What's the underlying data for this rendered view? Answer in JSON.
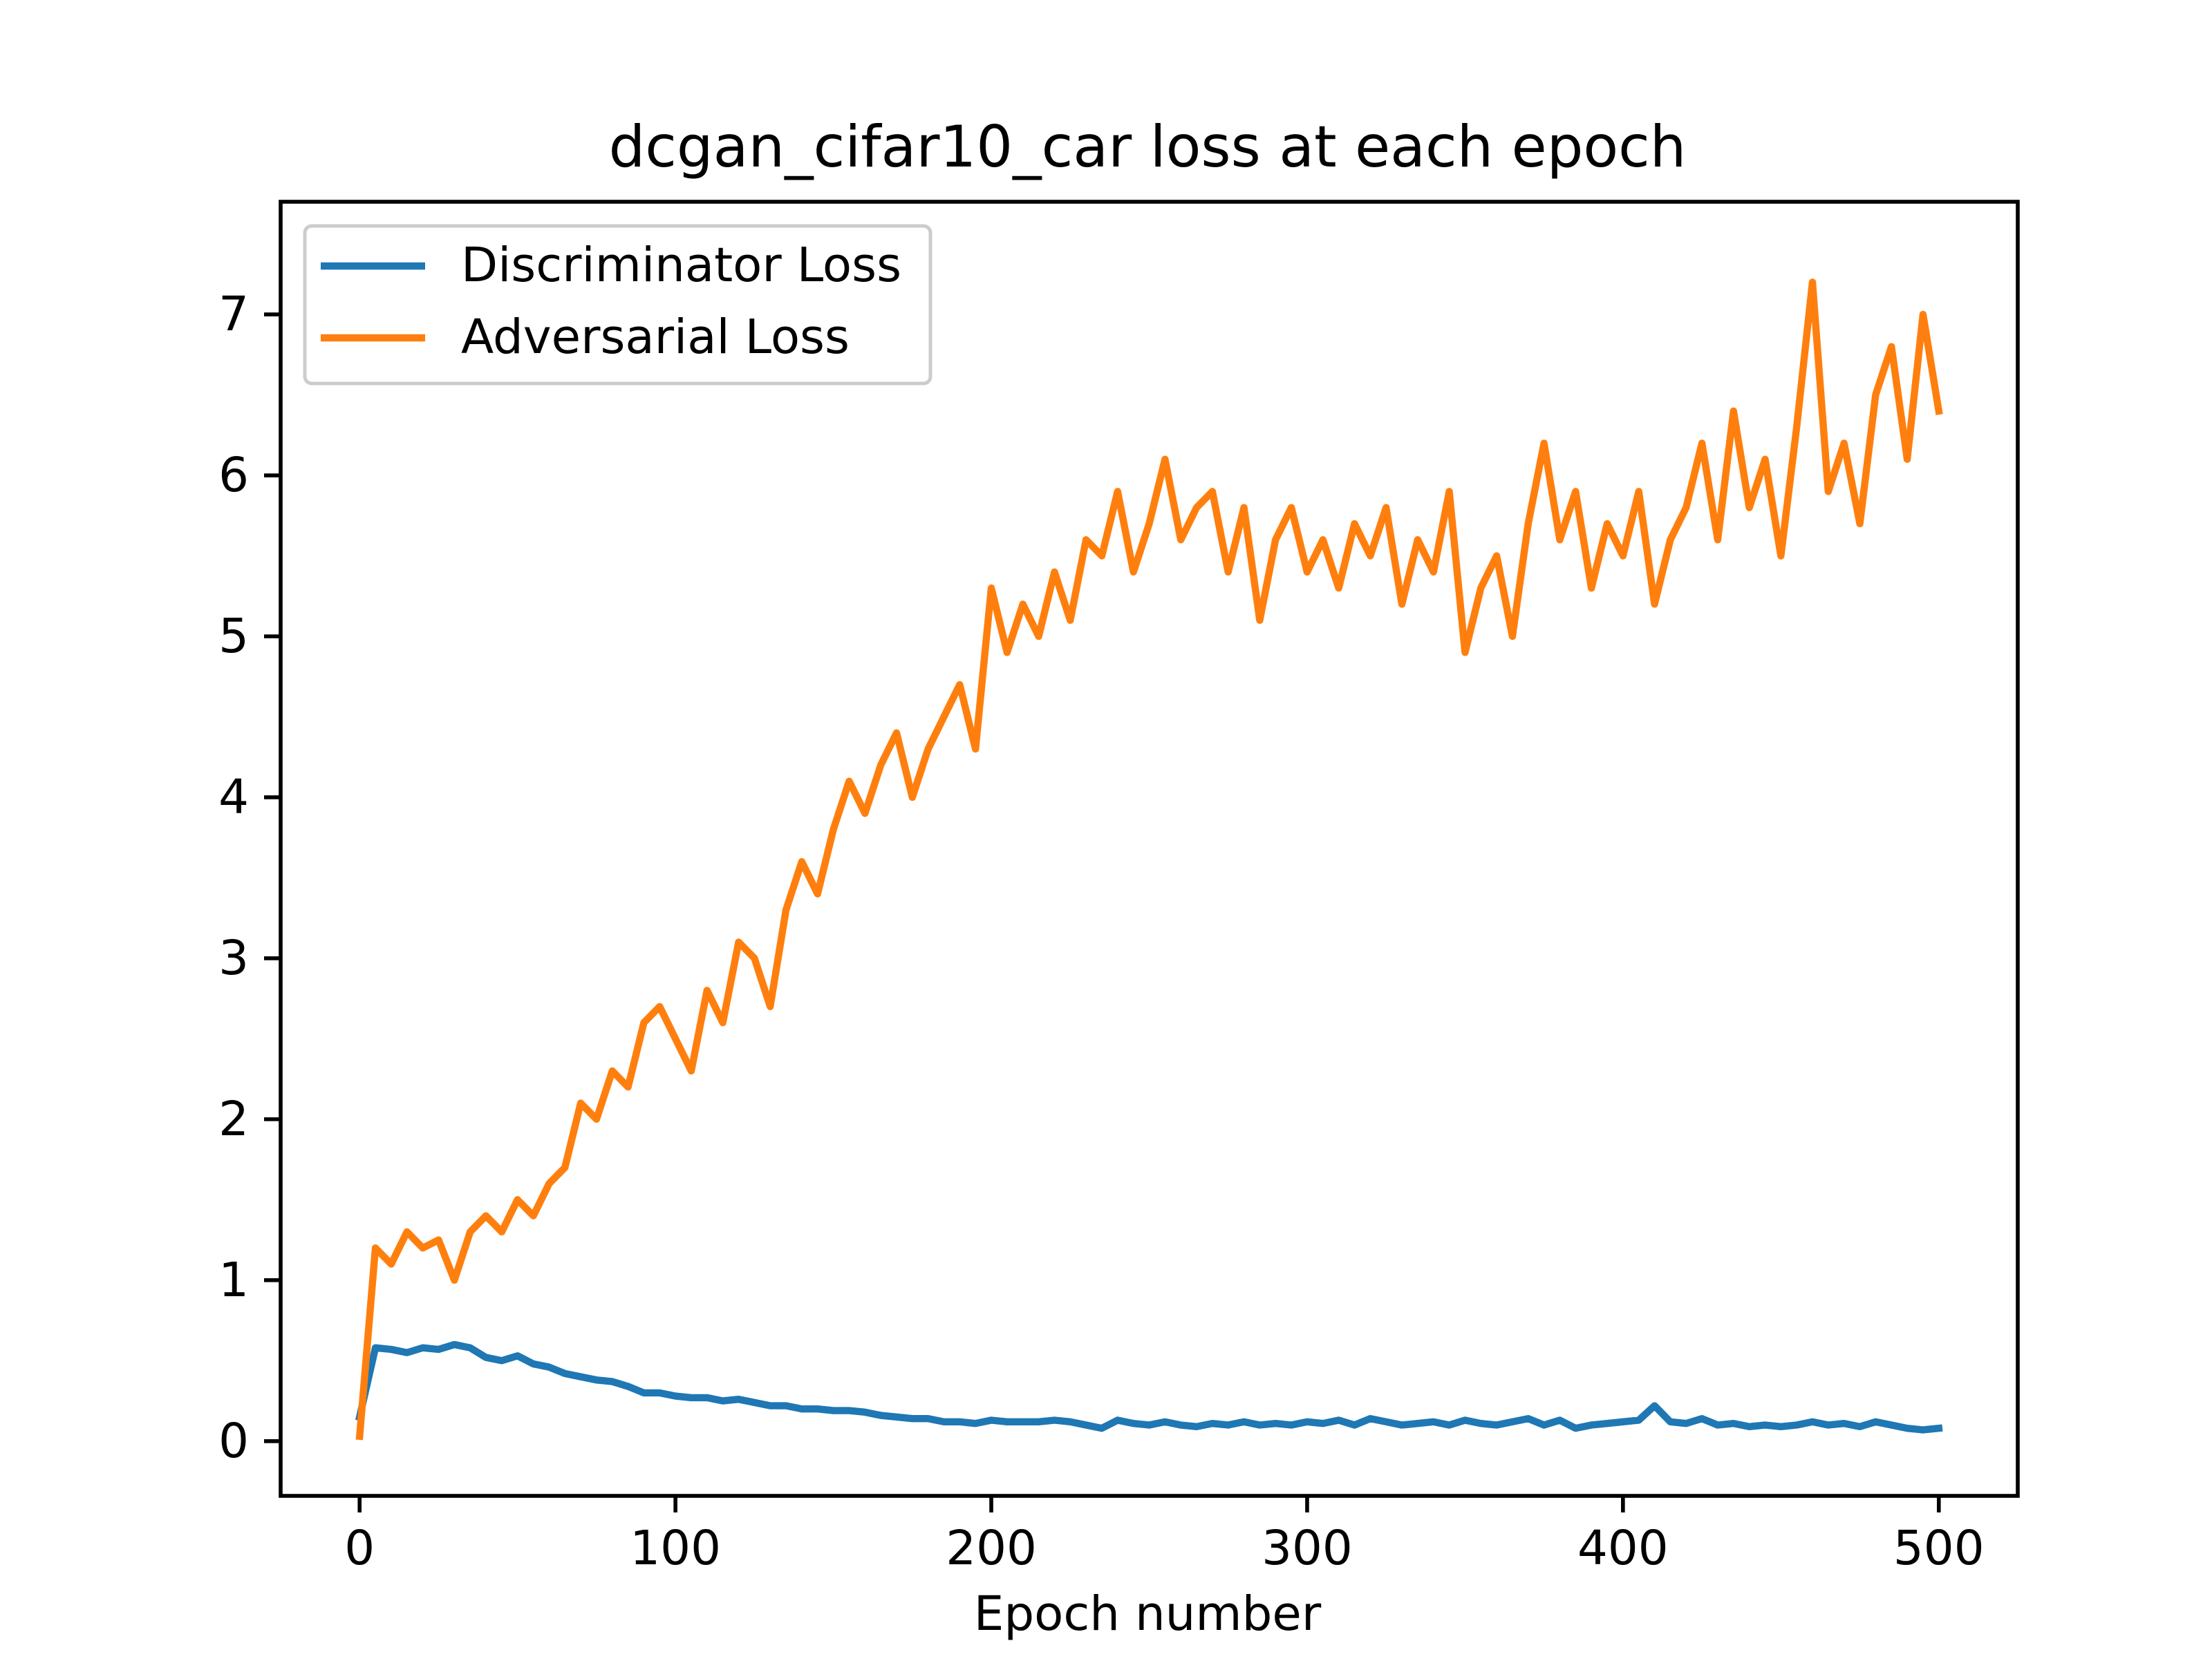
{
  "chart_data": {
    "type": "line",
    "title": "dcgan_cifar10_car loss at each epoch",
    "xlabel": "Epoch number",
    "x": [
      0,
      5,
      10,
      15,
      20,
      25,
      30,
      35,
      40,
      45,
      50,
      55,
      60,
      65,
      70,
      75,
      80,
      85,
      90,
      95,
      100,
      105,
      110,
      115,
      120,
      125,
      130,
      135,
      140,
      145,
      150,
      155,
      160,
      165,
      170,
      175,
      180,
      185,
      190,
      195,
      200,
      205,
      210,
      215,
      220,
      225,
      230,
      235,
      240,
      245,
      250,
      255,
      260,
      265,
      270,
      275,
      280,
      285,
      290,
      295,
      300,
      305,
      310,
      315,
      320,
      325,
      330,
      335,
      340,
      345,
      350,
      355,
      360,
      365,
      370,
      375,
      380,
      385,
      390,
      395,
      400,
      405,
      410,
      415,
      420,
      425,
      430,
      435,
      440,
      445,
      450,
      455,
      460,
      465,
      470,
      475,
      480,
      485,
      490,
      495,
      500
    ],
    "series": [
      {
        "name": "Discriminator Loss",
        "color": "#1f77b4",
        "values": [
          0.15,
          0.58,
          0.57,
          0.55,
          0.58,
          0.57,
          0.6,
          0.58,
          0.52,
          0.5,
          0.53,
          0.48,
          0.46,
          0.42,
          0.4,
          0.38,
          0.37,
          0.34,
          0.3,
          0.3,
          0.28,
          0.27,
          0.27,
          0.25,
          0.26,
          0.24,
          0.22,
          0.22,
          0.2,
          0.2,
          0.19,
          0.19,
          0.18,
          0.16,
          0.15,
          0.14,
          0.14,
          0.12,
          0.12,
          0.11,
          0.13,
          0.12,
          0.12,
          0.12,
          0.13,
          0.12,
          0.1,
          0.08,
          0.13,
          0.11,
          0.1,
          0.12,
          0.1,
          0.09,
          0.11,
          0.1,
          0.12,
          0.1,
          0.11,
          0.1,
          0.12,
          0.11,
          0.13,
          0.1,
          0.14,
          0.12,
          0.1,
          0.11,
          0.12,
          0.1,
          0.13,
          0.11,
          0.1,
          0.12,
          0.14,
          0.1,
          0.13,
          0.08,
          0.1,
          0.11,
          0.12,
          0.13,
          0.22,
          0.12,
          0.11,
          0.14,
          0.1,
          0.11,
          0.09,
          0.1,
          0.09,
          0.1,
          0.12,
          0.1,
          0.11,
          0.09,
          0.12,
          0.1,
          0.08,
          0.07,
          0.08
        ]
      },
      {
        "name": "Adversarial Loss",
        "color": "#ff7f0e",
        "values": [
          0.03,
          1.2,
          1.1,
          1.3,
          1.2,
          1.25,
          1.0,
          1.3,
          1.4,
          1.3,
          1.5,
          1.4,
          1.6,
          1.7,
          2.1,
          2.0,
          2.3,
          2.2,
          2.6,
          2.7,
          2.5,
          2.3,
          2.8,
          2.6,
          3.1,
          3.0,
          2.7,
          3.3,
          3.6,
          3.4,
          3.8,
          4.1,
          3.9,
          4.2,
          4.4,
          4.0,
          4.3,
          4.5,
          4.7,
          4.3,
          5.3,
          4.9,
          5.2,
          5.0,
          5.4,
          5.1,
          5.6,
          5.5,
          5.9,
          5.4,
          5.7,
          6.1,
          5.6,
          5.8,
          5.9,
          5.4,
          5.8,
          5.1,
          5.6,
          5.8,
          5.4,
          5.6,
          5.3,
          5.7,
          5.5,
          5.8,
          5.2,
          5.6,
          5.4,
          5.9,
          4.9,
          5.3,
          5.5,
          5.0,
          5.7,
          6.2,
          5.6,
          5.9,
          5.3,
          5.7,
          5.5,
          5.9,
          5.2,
          5.6,
          5.8,
          6.2,
          5.6,
          6.4,
          5.8,
          6.1,
          5.5,
          6.3,
          7.2,
          5.9,
          6.2,
          5.7,
          6.5,
          6.8,
          6.1,
          7.0,
          6.4
        ]
      }
    ],
    "xlim": [
      -25,
      525
    ],
    "ylim": [
      -0.34,
      7.7
    ],
    "xticks": [
      0,
      100,
      200,
      300,
      400,
      500
    ],
    "yticks": [
      0,
      1,
      2,
      3,
      4,
      5,
      6,
      7
    ],
    "grid": false,
    "legend": "upper-left"
  }
}
